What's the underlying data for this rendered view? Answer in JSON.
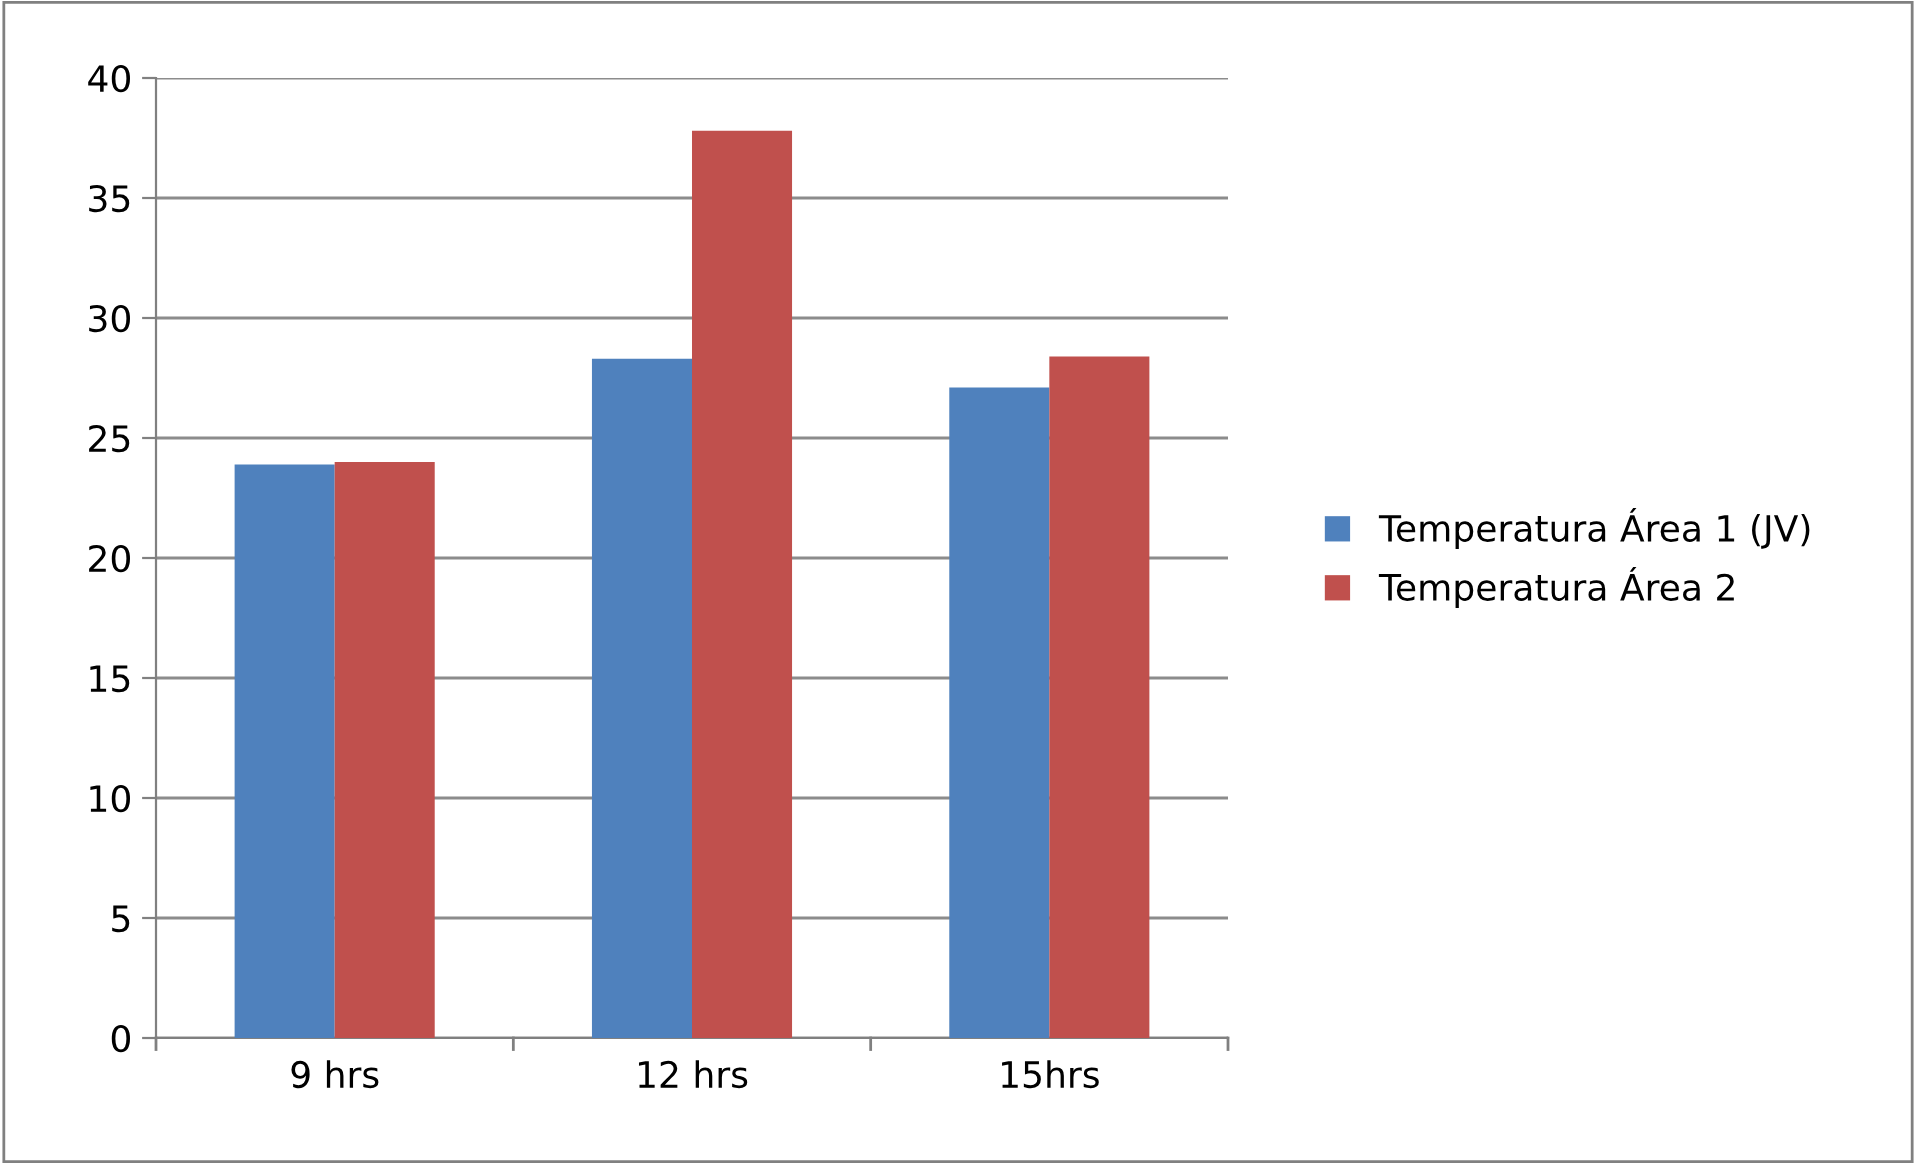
{
  "chart_data": {
    "type": "bar",
    "categories": [
      "9 hrs",
      "12 hrs",
      "15hrs"
    ],
    "series": [
      {
        "name": "Temperatura Área 1 (JV)",
        "color": "#4f81bd",
        "values": [
          23.9,
          28.3,
          27.1
        ]
      },
      {
        "name": "Temperatura Área 2",
        "color": "#c0504d",
        "values": [
          24.0,
          37.8,
          28.4
        ]
      }
    ],
    "ylim": [
      0,
      40
    ],
    "yticks": [
      0,
      5,
      10,
      15,
      20,
      25,
      30,
      35,
      40
    ],
    "grid": "y",
    "legend": "right"
  }
}
